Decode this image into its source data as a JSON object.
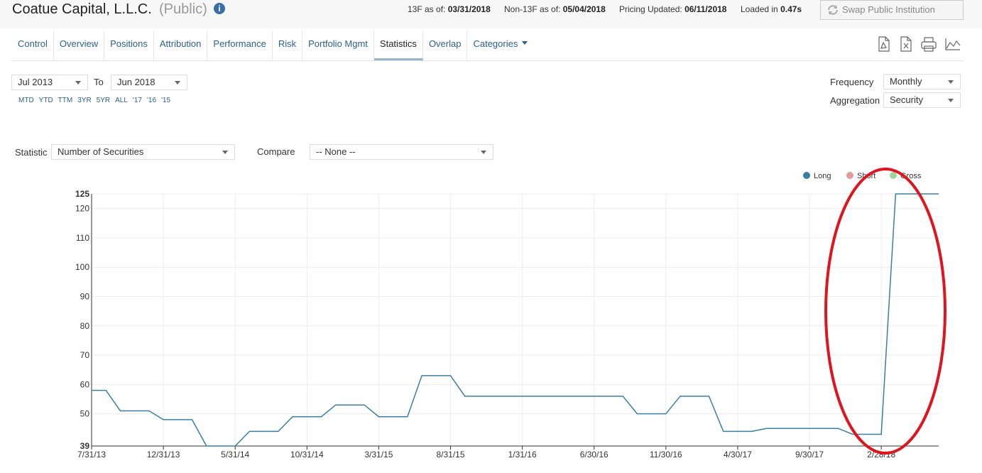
{
  "header": {
    "title": "Coatue Capital, L.L.C.",
    "badge": "(Public)",
    "meta": [
      {
        "label": "13F as of:",
        "value": "03/31/2018"
      },
      {
        "label": "Non-13F as of:",
        "value": "05/04/2018"
      },
      {
        "label": "Pricing Updated:",
        "value": "06/11/2018"
      },
      {
        "label": "Loaded in",
        "value": "0.47s"
      }
    ],
    "button": "Swap Public Institution"
  },
  "nav": {
    "items": [
      "Control",
      "Overview",
      "Positions",
      "Attribution",
      "Performance",
      "Risk",
      "Portfolio Mgmt",
      "Statistics",
      "Overlap",
      "Categories"
    ],
    "active_index": 7
  },
  "controls": {
    "from": "Jul 2013",
    "to_label": "To",
    "to": "Jun 2018",
    "quick_links": [
      "MTD",
      "YTD",
      "TTM",
      "3YR",
      "5YR",
      "ALL",
      "'17",
      "'16",
      "'15"
    ],
    "frequency_label": "Frequency",
    "frequency": "Monthly",
    "aggregation_label": "Aggregation",
    "aggregation": "Security",
    "statistic_label": "Statistic",
    "statistic": "Number of Securities",
    "compare_label": "Compare",
    "compare": "-- None --"
  },
  "chart_data": {
    "type": "line",
    "categories": [
      "7/31/13",
      null,
      null,
      null,
      null,
      "12/31/13",
      null,
      null,
      null,
      null,
      "5/31/14",
      null,
      null,
      null,
      null,
      "10/31/14",
      null,
      null,
      null,
      null,
      "3/31/15",
      null,
      null,
      null,
      null,
      "8/31/15",
      null,
      null,
      null,
      null,
      "1/31/16",
      null,
      null,
      null,
      null,
      "6/30/16",
      null,
      null,
      null,
      null,
      "11/30/16",
      null,
      null,
      null,
      null,
      "4/30/17",
      null,
      null,
      null,
      null,
      "9/30/17",
      null,
      null,
      null,
      null,
      "2/28/18",
      null,
      null,
      null,
      null
    ],
    "series": [
      {
        "name": "Long",
        "color": "#3b7ea1",
        "values": [
          58,
          58,
          51,
          51,
          51,
          48,
          48,
          48,
          39,
          39,
          39,
          44,
          44,
          44,
          49,
          49,
          49,
          53,
          53,
          53,
          49,
          49,
          49,
          63,
          63,
          63,
          56,
          56,
          56,
          56,
          56,
          56,
          56,
          56,
          56,
          56,
          56,
          56,
          50,
          50,
          50,
          56,
          56,
          56,
          44,
          44,
          44,
          45,
          45,
          45,
          45,
          45,
          45,
          43,
          43,
          43,
          125,
          125,
          125,
          125
        ]
      },
      {
        "name": "Short",
        "color": "#e39a9a",
        "values": [
          null,
          null,
          null,
          null,
          null,
          null,
          null,
          null,
          null,
          null,
          null,
          null,
          null,
          null,
          null,
          null,
          null,
          null,
          null,
          null,
          null,
          null,
          null,
          null,
          null,
          null,
          null,
          null,
          null,
          null,
          null,
          null,
          null,
          null,
          null,
          null,
          null,
          null,
          null,
          null,
          null,
          null,
          null,
          null,
          null,
          null,
          null,
          null,
          null,
          null,
          null,
          null,
          null,
          null,
          null,
          null,
          null,
          null,
          null,
          null
        ]
      },
      {
        "name": "Gross",
        "color": "#9dd39d",
        "values": [
          null,
          null,
          null,
          null,
          null,
          null,
          null,
          null,
          null,
          null,
          null,
          null,
          null,
          null,
          null,
          null,
          null,
          null,
          null,
          null,
          null,
          null,
          null,
          null,
          null,
          null,
          null,
          null,
          null,
          null,
          null,
          null,
          null,
          null,
          null,
          null,
          null,
          null,
          null,
          null,
          null,
          null,
          null,
          null,
          null,
          null,
          null,
          null,
          null,
          null,
          null,
          null,
          null,
          null,
          null,
          null,
          null,
          null,
          null,
          null
        ]
      }
    ],
    "ylim": [
      39,
      125
    ],
    "yticks": [
      39,
      50,
      60,
      70,
      80,
      90,
      100,
      110,
      120,
      125
    ],
    "grid": true,
    "legend": "top-right"
  }
}
